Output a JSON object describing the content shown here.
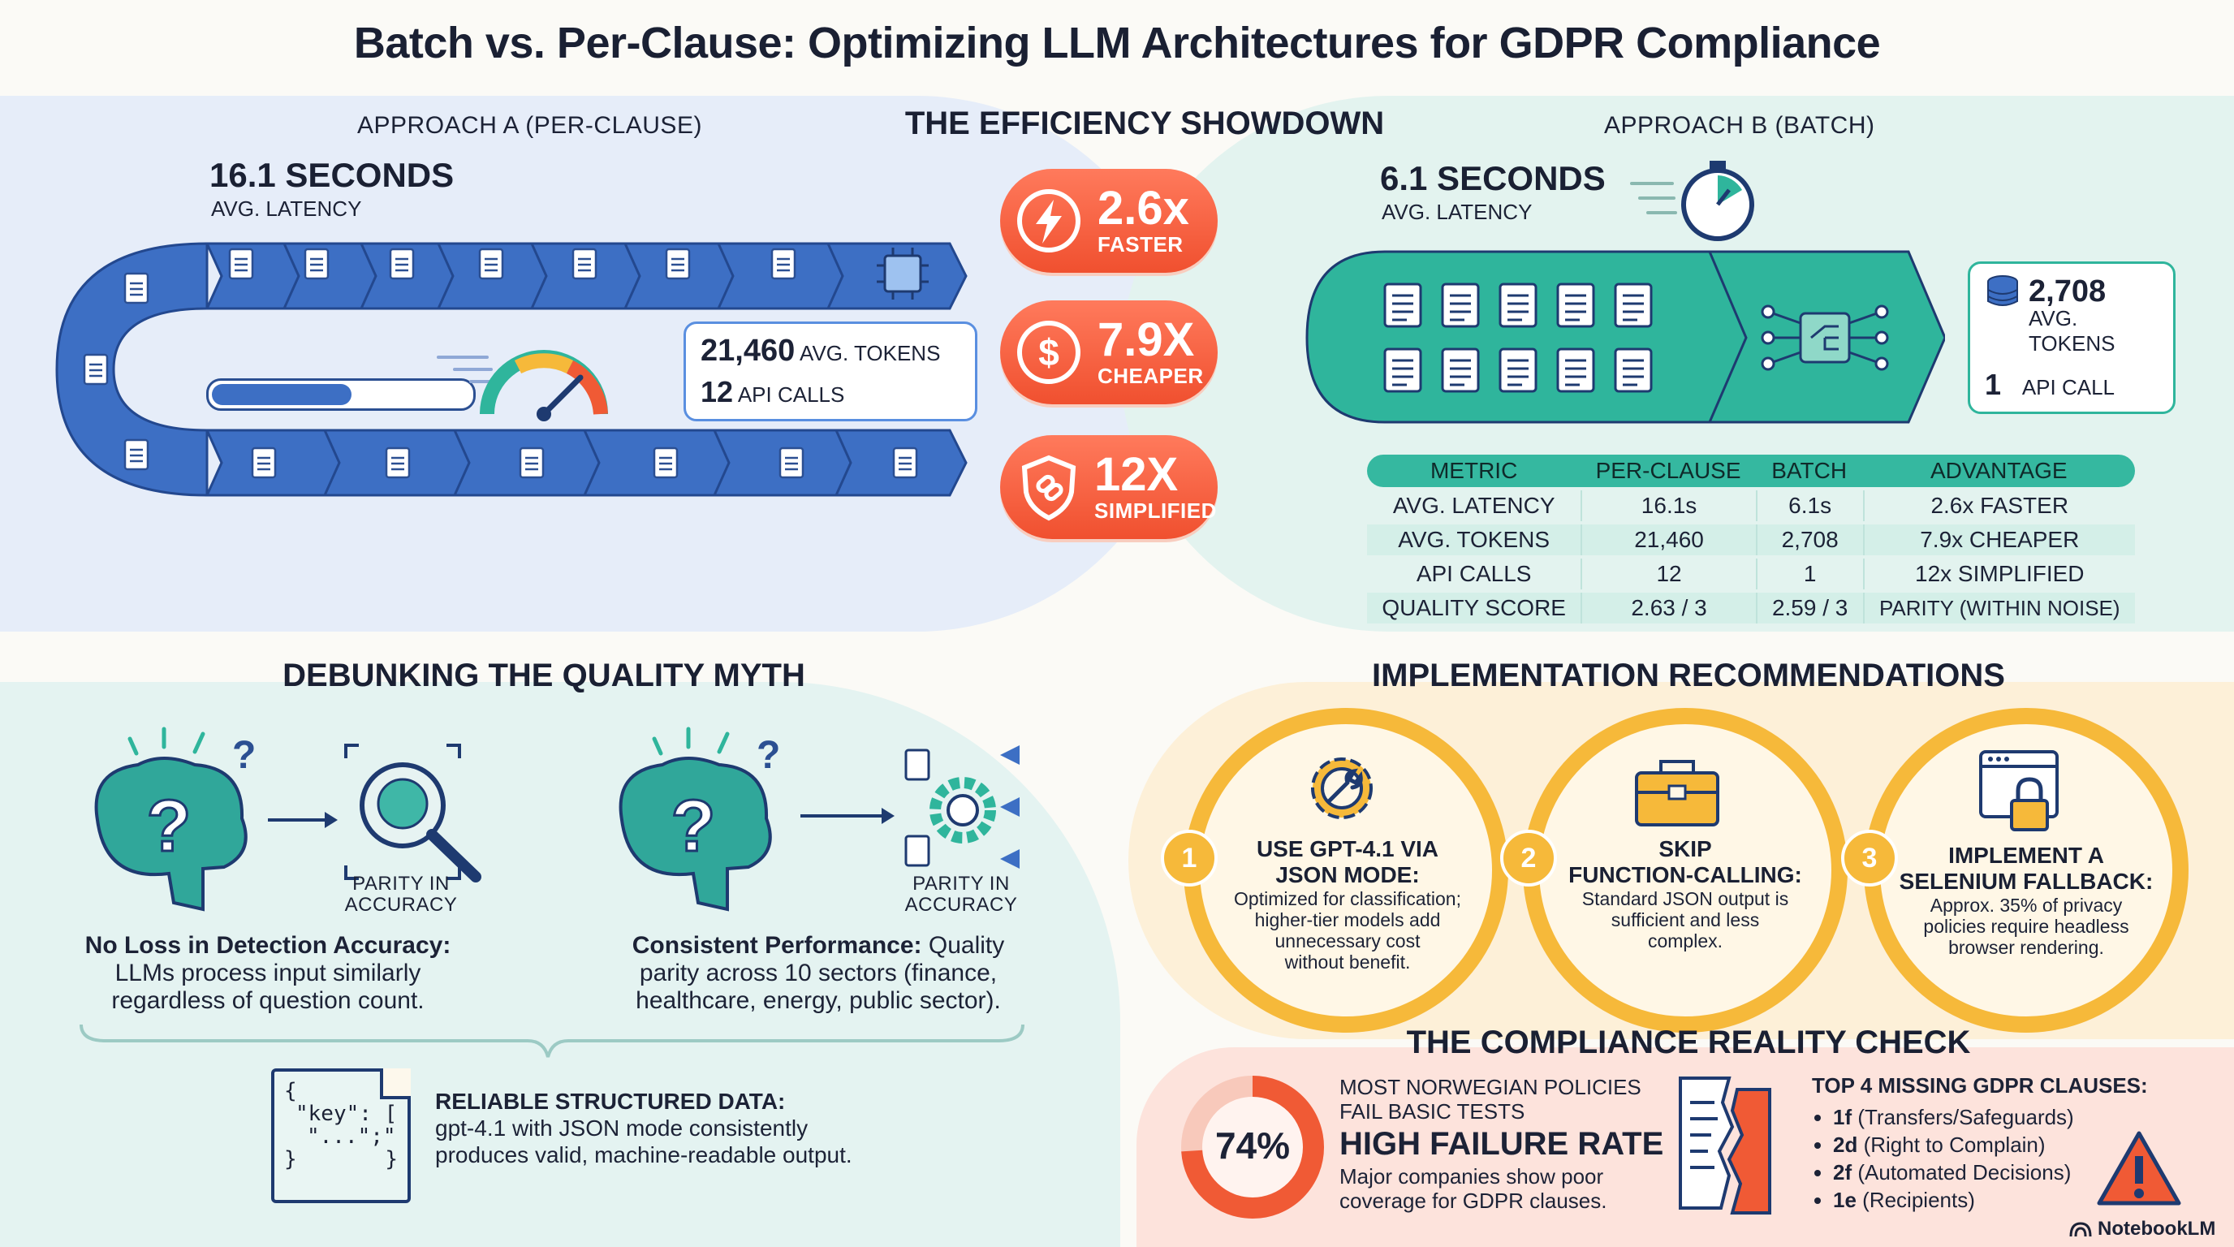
{
  "title": "Batch vs. Per-Clause: Optimizing LLM Architectures for GDPR Compliance",
  "showdown": {
    "heading": "THE EFFICIENCY SHOWDOWN",
    "badges": [
      {
        "value": "2.6x",
        "label": "FASTER",
        "icon": "lightning-icon"
      },
      {
        "value": "7.9X",
        "label": "CHEAPER",
        "icon": "dollar-icon"
      },
      {
        "value": "12X",
        "label": "SIMPLIFIED",
        "icon": "shield-link-icon"
      }
    ]
  },
  "approach_a": {
    "label": "APPROACH A (PER-CLAUSE)",
    "latency_value": "16.1 SECONDS",
    "latency_label": "AVG. LATENCY",
    "tokens_value": "21,460",
    "tokens_label": "AVG. TOKENS",
    "calls_value": "12",
    "calls_label": "API CALLS"
  },
  "approach_b": {
    "label": "APPROACH B (BATCH)",
    "latency_value": "6.1 SECONDS",
    "latency_label": "AVG. LATENCY",
    "tokens_value": "2,708",
    "tokens_label": "AVG. TOKENS",
    "calls_value": "1",
    "calls_label": "API CALL"
  },
  "comparison": {
    "headers": [
      "METRIC",
      "PER-CLAUSE",
      "BATCH",
      "ADVANTAGE"
    ],
    "rows": [
      [
        "AVG. LATENCY",
        "16.1s",
        "6.1s",
        "2.6x FASTER"
      ],
      [
        "AVG. TOKENS",
        "21,460",
        "2,708",
        "7.9x CHEAPER"
      ],
      [
        "API CALLS",
        "12",
        "1",
        "12x SIMPLIFIED"
      ],
      [
        "QUALITY SCORE",
        "2.63 / 3",
        "2.59 / 3",
        "PARITY (WITHIN NOISE)"
      ]
    ]
  },
  "quality": {
    "heading": "DEBUNKING THE QUALITY MYTH",
    "parity_label_1": "PARITY IN",
    "parity_label_2": "ACCURACY",
    "left_title": "No Loss in Detection Accuracy:",
    "left_text_1": "LLMs process input similarly",
    "left_text_2": "regardless of question count.",
    "right_title": "Consistent Performance:",
    "right_text_1": "Quality",
    "right_text_2": "parity across 10 sectors (finance,",
    "right_text_3": "healthcare, energy, public sector).",
    "json_lines": [
      "{",
      "\"key\": [",
      "\"...\";\"",
      "}",
      "}"
    ],
    "struct_title": "RELIABLE STRUCTURED DATA:",
    "struct_text_1": "gpt-4.1 with JSON mode consistently",
    "struct_text_2": "produces valid, machine-readable output."
  },
  "recommendations": {
    "heading": "IMPLEMENTATION RECOMMENDATIONS",
    "items": [
      {
        "num": "1",
        "title_1": "USE GPT-4.1 VIA",
        "title_2": "JSON MODE:",
        "desc_1": "Optimized for classification;",
        "desc_2": "higher-tier models add",
        "desc_3": "unnecessary cost",
        "desc_4": "without benefit.",
        "icon": "gear-wrench-icon"
      },
      {
        "num": "2",
        "title_1": "SKIP",
        "title_2": "FUNCTION-CALLING:",
        "desc_1": "Standard JSON output is",
        "desc_2": "sufficient and less",
        "desc_3": "complex.",
        "desc_4": "",
        "icon": "toolbox-icon"
      },
      {
        "num": "3",
        "title_1": "IMPLEMENT A",
        "title_2": "SELENIUM FALLBACK:",
        "desc_1": "Approx. 35% of privacy",
        "desc_2": "policies require headless",
        "desc_3": "browser rendering.",
        "desc_4": "",
        "icon": "browser-lock-icon"
      }
    ]
  },
  "compliance": {
    "heading": "THE COMPLIANCE REALITY CHECK",
    "percent_label": "74%",
    "percent_value": 0.74,
    "sub_1": "MOST NORWEGIAN POLICIES",
    "sub_2": "FAIL BASIC TESTS",
    "big": "HIGH FAILURE RATE",
    "desc_1": "Major companies show poor",
    "desc_2": "coverage for GDPR clauses.",
    "missing_title": "TOP 4 MISSING GDPR CLAUSES:",
    "missing": [
      {
        "code": "1f",
        "desc": "(Transfers/Safeguards)"
      },
      {
        "code": "2d",
        "desc": "(Right to Complain)"
      },
      {
        "code": "2f",
        "desc": "(Automated Decisions)"
      },
      {
        "code": "1e",
        "desc": "(Recipients)"
      }
    ]
  },
  "footer": {
    "brand": "NotebookLM"
  },
  "colors": {
    "blue": "#3d6fc4",
    "teal": "#2fb59c",
    "orange": "#f05a35",
    "amber": "#f6b93a"
  }
}
